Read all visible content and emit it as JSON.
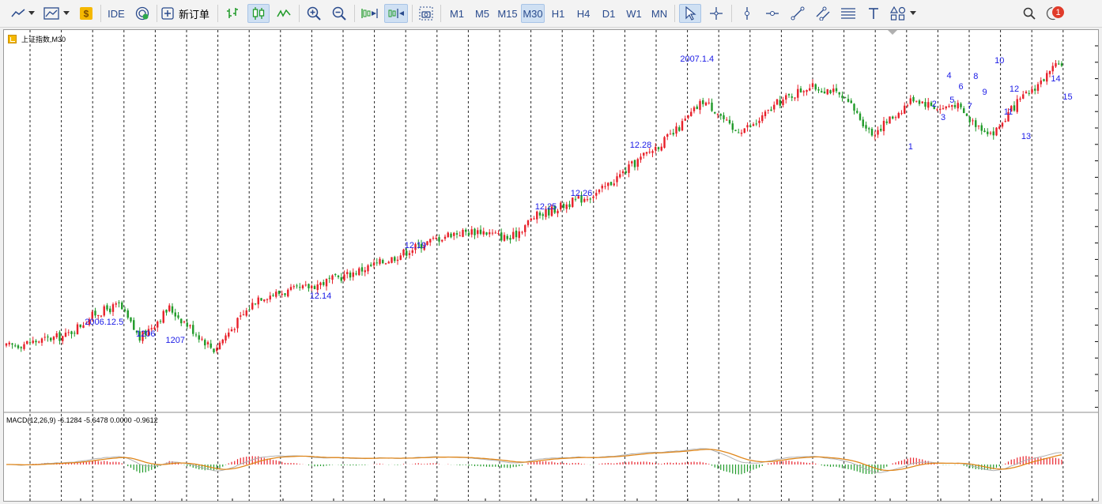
{
  "toolbar": {
    "ide_label": "IDE",
    "new_order_label": "新订单",
    "timeframes": [
      "M1",
      "M5",
      "M15",
      "M30",
      "H1",
      "H4",
      "D1",
      "W1",
      "MN"
    ],
    "active_timeframe": "M30",
    "alert_count": "1",
    "icons": [
      "line-chart-icon",
      "dropdown-arrow-icon",
      "indicators-icon",
      "dropdown-arrow-icon",
      "market-dollar-icon",
      "signals-icon",
      "new-order-icon",
      "bar-chart-icon",
      "candlestick-icon",
      "line-icon",
      "zoom-in-icon",
      "zoom-out-icon",
      "chart-shift-icon",
      "autoscroll-icon",
      "screenshot-icon",
      "cursor-icon",
      "crosshair-icon",
      "vertical-line-icon",
      "horizontal-line-icon",
      "trendline-icon",
      "channel-icon",
      "fibonacci-icon",
      "text-icon",
      "shapes-icon",
      "search-icon",
      "notifications-icon"
    ]
  },
  "chart": {
    "symbol": "上证指数,M30",
    "macd_label": "MACD(12,26,9) -6.1284 -5.6478 0.0000 -0.9612",
    "up_color": "#e8202a",
    "down_color": "#1f9a28",
    "label_color": "#1a1ae6",
    "annotations": [
      "2006.12.5",
      "1206",
      "1207",
      "12.14",
      "12.19",
      "12.25",
      "12.26",
      "12.28",
      "2007.1.4",
      "1",
      "2",
      "3",
      "4",
      "5",
      "6",
      "7",
      "8",
      "9",
      "10",
      "11",
      "12",
      "13",
      "14",
      "15"
    ]
  },
  "chart_data": {
    "type": "candlestick",
    "indicator": "MACD(12,26,9)",
    "macd_values": {
      "macd": -6.1284,
      "signal": -5.6478,
      "third": 0.0,
      "histogram": -0.9612
    },
    "price_path": [
      {
        "bar": 0,
        "price": 10
      },
      {
        "bar": 10,
        "price": 12
      },
      {
        "bar": 20,
        "price": 14
      },
      {
        "bar": 30,
        "price": 22
      },
      {
        "bar": 38,
        "price": 25
      },
      {
        "bar": 45,
        "price": 13
      },
      {
        "bar": 55,
        "price": 24
      },
      {
        "bar": 62,
        "price": 17
      },
      {
        "bar": 70,
        "price": 9
      },
      {
        "bar": 85,
        "price": 28
      },
      {
        "bar": 100,
        "price": 31
      },
      {
        "bar": 115,
        "price": 36
      },
      {
        "bar": 130,
        "price": 42
      },
      {
        "bar": 140,
        "price": 47
      },
      {
        "bar": 150,
        "price": 51
      },
      {
        "bar": 160,
        "price": 52
      },
      {
        "bar": 170,
        "price": 49
      },
      {
        "bar": 178,
        "price": 57
      },
      {
        "bar": 190,
        "price": 62
      },
      {
        "bar": 200,
        "price": 66
      },
      {
        "bar": 215,
        "price": 79
      },
      {
        "bar": 225,
        "price": 87
      },
      {
        "bar": 235,
        "price": 99
      },
      {
        "bar": 240,
        "price": 95
      },
      {
        "bar": 245,
        "price": 88
      },
      {
        "bar": 252,
        "price": 90
      },
      {
        "bar": 260,
        "price": 98
      },
      {
        "bar": 270,
        "price": 104
      },
      {
        "bar": 278,
        "price": 103
      },
      {
        "bar": 285,
        "price": 97
      },
      {
        "bar": 292,
        "price": 87
      },
      {
        "bar": 300,
        "price": 94
      },
      {
        "bar": 306,
        "price": 100
      },
      {
        "bar": 315,
        "price": 96
      },
      {
        "bar": 320,
        "price": 98
      },
      {
        "bar": 325,
        "price": 92
      },
      {
        "bar": 333,
        "price": 87
      },
      {
        "bar": 340,
        "price": 97
      },
      {
        "bar": 346,
        "price": 103
      },
      {
        "bar": 356,
        "price": 113
      }
    ]
  }
}
